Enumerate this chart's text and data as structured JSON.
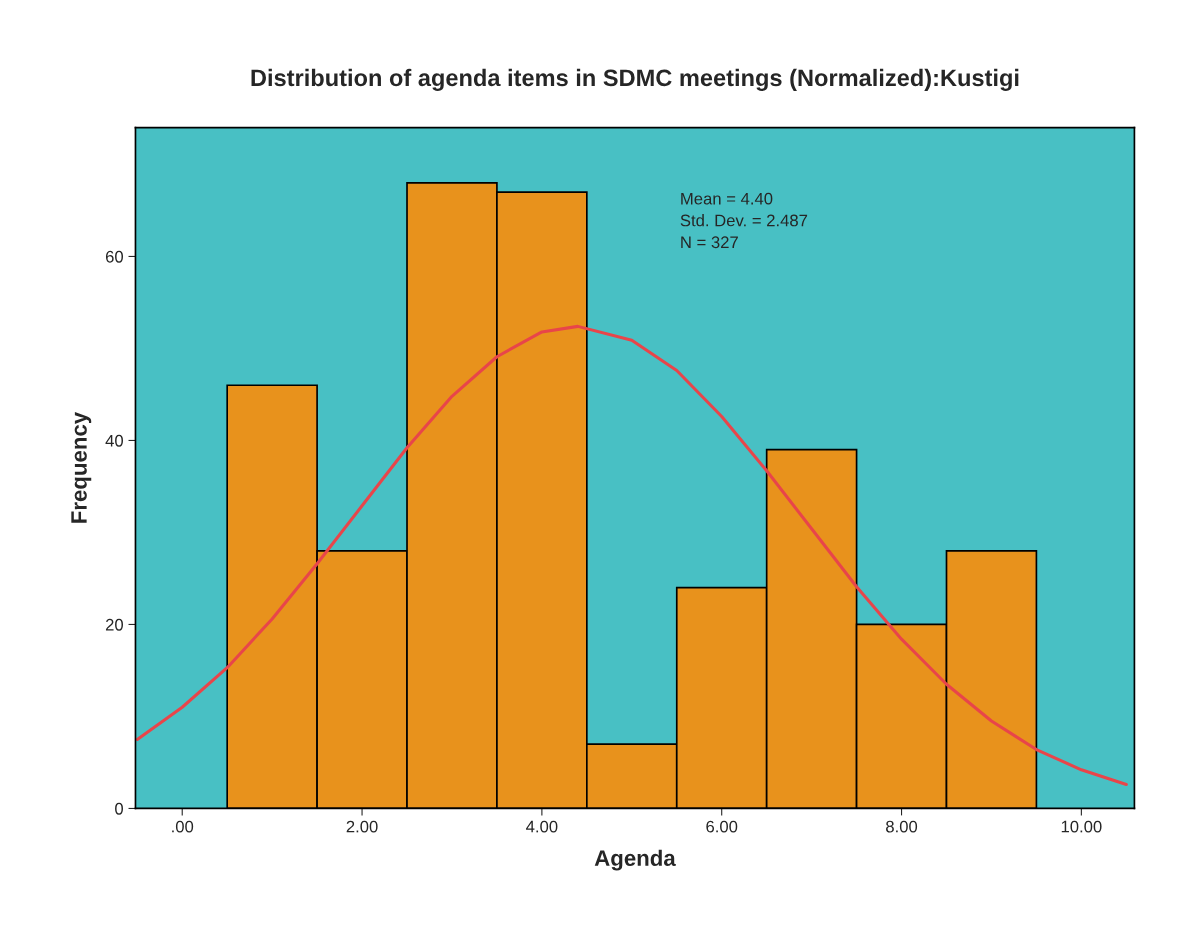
{
  "chart_data": {
    "type": "histogram",
    "title": "Distribution of agenda items in SDMC meetings (Normalized):Kustigi",
    "xlabel": "Agenda",
    "ylabel": "Frequency",
    "bins": [
      0.5,
      1.5,
      2.5,
      3.5,
      4.5,
      5.5,
      6.5,
      7.5,
      8.5,
      9.5
    ],
    "values": [
      46,
      28,
      68,
      67,
      7,
      24,
      39,
      20,
      28
    ],
    "color": "#e8921c",
    "series": [
      {
        "type": "line",
        "color": "#e8454a",
        "x": [
          -0.5,
          0,
          0.5,
          1,
          1.5,
          2,
          2.5,
          3,
          3.5,
          4,
          4.4,
          5,
          5.5,
          6,
          6.5,
          7,
          7.5,
          8,
          8.5,
          9,
          9.5,
          10,
          10.5
        ],
        "values": [
          7.5,
          11.0,
          15.3,
          20.6,
          26.6,
          32.9,
          39.2,
          44.8,
          49.1,
          51.8,
          52.4,
          50.9,
          47.6,
          42.6,
          36.7,
          30.4,
          24.1,
          18.4,
          13.5,
          9.5,
          6.4,
          4.2,
          2.6
        ]
      }
    ],
    "annotations": [
      "Mean = 4.40",
      "Std. Dev. = 2.487",
      "N = 327"
    ],
    "xlim": [
      -0.52,
      10.59
    ],
    "ylim": [
      0,
      74
    ],
    "xticks": [
      {
        "value": 0,
        "label": ".00"
      },
      {
        "value": 2,
        "label": "2.00"
      },
      {
        "value": 4,
        "label": "4.00"
      },
      {
        "value": 6,
        "label": "6.00"
      },
      {
        "value": 8,
        "label": "8.00"
      },
      {
        "value": 10,
        "label": "10.00"
      }
    ],
    "yticks": [
      0,
      20,
      40,
      60
    ],
    "grid": false,
    "legend": false
  }
}
